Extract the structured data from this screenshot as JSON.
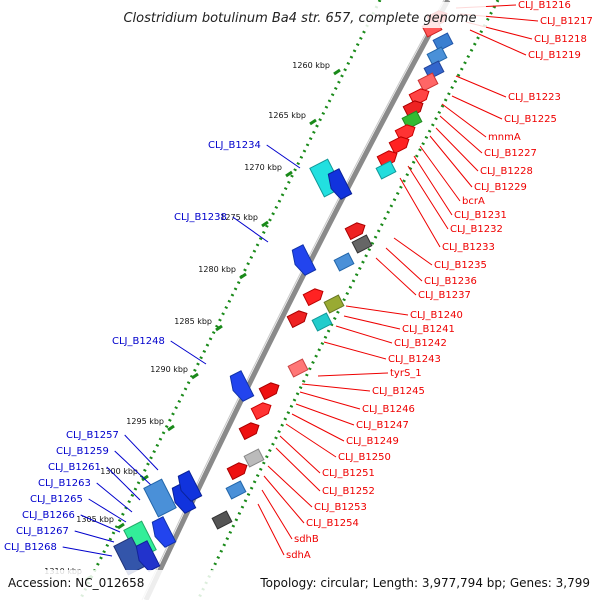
{
  "title": "Clostridium botulinum Ba4 str. 657, complete genome",
  "footer": {
    "accession": "Accession: NC_012658",
    "summary": "Topology: circular; Length: 3,977,794 bp; Genes: 3,799"
  },
  "colors": {
    "forward_label": "#ee0000",
    "reverse_label": "#0000cc",
    "backbone": "#8a8a8a",
    "dotted_track": "#1a8a1a"
  },
  "kbp_ticks": [
    "1260 kbp",
    "1265 kbp",
    "1270 kbp",
    "1275 kbp",
    "1280 kbp",
    "1285 kbp",
    "1290 kbp",
    "1295 kbp",
    "1300 kbp",
    "1305 kbp",
    "1310 kbp"
  ],
  "forward_labels": [
    "CLJ_B1216",
    "CLJ_B1217",
    "CLJ_B1218",
    "CLJ_B1219",
    "CLJ_B1223",
    "CLJ_B1225",
    "mnmA",
    "CLJ_B1227",
    "CLJ_B1228",
    "CLJ_B1229",
    "bcrA",
    "CLJ_B1231",
    "CLJ_B1232",
    "CLJ_B1233",
    "CLJ_B1235",
    "CLJ_B1236",
    "CLJ_B1237",
    "CLJ_B1240",
    "CLJ_B1241",
    "CLJ_B1242",
    "CLJ_B1243",
    "tyrS_1",
    "CLJ_B1245",
    "CLJ_B1246",
    "CLJ_B1247",
    "CLJ_B1249",
    "CLJ_B1250",
    "CLJ_B1251",
    "CLJ_B1252",
    "CLJ_B1253",
    "CLJ_B1254",
    "sdhB",
    "sdhA"
  ],
  "reverse_labels": [
    "CLJ_B1234",
    "CLJ_B1238",
    "CLJ_B1248",
    "CLJ_B1257",
    "CLJ_B1259",
    "CLJ_B1261",
    "CLJ_B1263",
    "CLJ_B1265",
    "CLJ_B1266",
    "CLJ_B1267",
    "CLJ_B1268"
  ]
}
